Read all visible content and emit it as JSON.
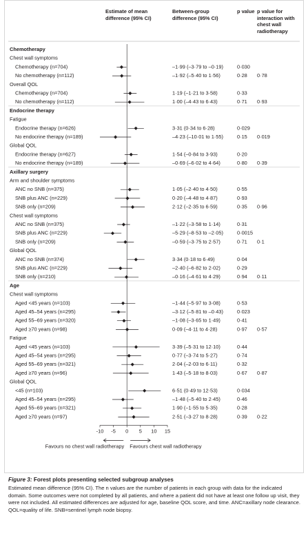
{
  "chart_data": {
    "type": "forest",
    "columns": [
      "Estimate of mean difference (95% CI)",
      "Between-group difference (95% CI)",
      "p value",
      "p value for interaction with chest wall radiotherapy"
    ],
    "xlim": [
      -10,
      15
    ],
    "xticks": [
      -10,
      -5,
      0,
      5,
      10,
      15
    ],
    "color": "#231f20",
    "favours_left": "Favours no chest wall radiotherapy",
    "favours_right": "Favours chest wall radiotherapy",
    "sections": [
      {
        "title": "Chemotherapy",
        "groups": [
          {
            "title": "Chest wall symptoms",
            "rows": [
              {
                "label": "Chemotherapy (n=704)",
                "estimate": -1.99,
                "ci_low": -3.79,
                "ci_high": -0.19,
                "difference": "–1·99 (–3·79 to –0·19)",
                "p": "0·030"
              },
              {
                "label": "No chemotherapy (n=112)",
                "estimate": -1.92,
                "ci_low": -5.4,
                "ci_high": 1.56,
                "difference": "–1·92 (–5·40 to 1·56)",
                "p": "0·28",
                "p_interaction": "0·78"
              }
            ]
          },
          {
            "title": "Overall QOL",
            "rows": [
              {
                "label": "Chemotherapy (n=704)",
                "estimate": 1.19,
                "ci_low": -1.21,
                "ci_high": 3.58,
                "difference": "1·19 (–1·21 to 3·58)",
                "p": "0·33"
              },
              {
                "label": "No chemotherapy (n=112)",
                "estimate": 1.0,
                "ci_low": -4.43,
                "ci_high": 6.43,
                "difference": "1·00 (–4·43 to 6·43)",
                "p": "0·71",
                "p_interaction": "0·93"
              }
            ]
          }
        ]
      },
      {
        "title": "Endocrine therapy",
        "groups": [
          {
            "title": "Fatigue",
            "rows": [
              {
                "label": "Endocrine therapy (n=626)",
                "estimate": 3.31,
                "ci_low": 0.34,
                "ci_high": 6.28,
                "difference": "3·31 (0·34 to 6·28)",
                "p": "0·029"
              },
              {
                "label": "No endocrine therapy (n=189)",
                "estimate": -4.23,
                "ci_low": -10.01,
                "ci_high": 1.55,
                "difference": "–4·23 (–10·01 to 1·55)",
                "p": "0·15",
                "p_interaction": "0·019"
              }
            ]
          },
          {
            "title": "Global QOL",
            "rows": [
              {
                "label": "Endocrine therapy (n=627)",
                "estimate": 1.54,
                "ci_low": -0.84,
                "ci_high": 3.93,
                "difference": "1·54 (–0·84 to 3·93)",
                "p": "0·20"
              },
              {
                "label": "No endocrine therapy (n=189)",
                "estimate": -0.69,
                "ci_low": -6.02,
                "ci_high": 4.64,
                "difference": "–0·69 (–6·02 to 4·64)",
                "p": "0·80",
                "p_interaction": "0·39"
              }
            ]
          }
        ]
      },
      {
        "title": "Axillary surgery",
        "groups": [
          {
            "title": "Arm and shoulder symptoms",
            "rows": [
              {
                "label": "ANC no SNB (n=375)",
                "estimate": 1.05,
                "ci_low": -2.4,
                "ci_high": 4.5,
                "difference": "1·05 (–2·40 to 4·50)",
                "p": "0·55"
              },
              {
                "label": "SNB plus ANC (n=229)",
                "estimate": 0.2,
                "ci_low": -4.48,
                "ci_high": 4.87,
                "difference": "0·20 (–4·48 to 4·87)",
                "p": "0·93"
              },
              {
                "label": "SNB only (n=209)",
                "estimate": 2.12,
                "ci_low": -2.35,
                "ci_high": 6.59,
                "difference": "2·12 (–2·35 to 6·59)",
                "p": "0·35",
                "p_interaction": "0·96"
              }
            ]
          },
          {
            "title": "Chest wall symptoms",
            "rows": [
              {
                "label": "ANC no SNB (n=375)",
                "estimate": -1.22,
                "ci_low": -3.58,
                "ci_high": 1.14,
                "difference": "–1·22 (–3·58 to 1·14)",
                "p": "0·31"
              },
              {
                "label": "SNB plus ANC (n=229)",
                "estimate": -5.29,
                "ci_low": -8.53,
                "ci_high": -2.05,
                "difference": "–5·29 (–8·53 to –2·05)",
                "p": "0·0015"
              },
              {
                "label": "SNB only (n=209)",
                "estimate": -0.59,
                "ci_low": -3.75,
                "ci_high": 2.57,
                "difference": "–0·59 (–3·75 to 2·57)",
                "p": "0·71",
                "p_interaction": "0·1"
              }
            ]
          },
          {
            "title": "Global QOL",
            "rows": [
              {
                "label": "ANC no SNB (n=374)",
                "estimate": 3.34,
                "ci_low": 0.18,
                "ci_high": 6.49,
                "difference": "3·34 (0·18 to 6·49)",
                "p": "0·04"
              },
              {
                "label": "SNB plus ANC (n=229)",
                "estimate": -2.4,
                "ci_low": -6.82,
                "ci_high": 2.02,
                "difference": "–2·40 (–6·82 to 2·02)",
                "p": "0·29"
              },
              {
                "label": "SNB only (n=210)",
                "estimate": -0.16,
                "ci_low": -4.61,
                "ci_high": 4.29,
                "difference": "–0·16 (–4·61 to 4·29)",
                "p": "0·94",
                "p_interaction": "0·11"
              }
            ]
          }
        ]
      },
      {
        "title": "Age",
        "groups": [
          {
            "title": "Chest wall symptoms",
            "rows": [
              {
                "label": "Aged <45 years (n=103)",
                "estimate": -1.44,
                "ci_low": -5.97,
                "ci_high": 3.08,
                "difference": "–1·44 (–5·97 to 3·08)",
                "p": "0·53"
              },
              {
                "label": "Aged 45–54 years (n=295)",
                "estimate": -3.12,
                "ci_low": -5.81,
                "ci_high": -0.43,
                "difference": "–3·12 (–5·81 to –0·43)",
                "p": "0·023"
              },
              {
                "label": "Aged 55–69 years (n=320)",
                "estimate": -1.08,
                "ci_low": -3.65,
                "ci_high": 1.49,
                "difference": "–1·08 (–3·65 to 1·49)",
                "p": "0·41"
              },
              {
                "label": "Aged ≥70 years (n=98)",
                "estimate": 0.09,
                "ci_low": -4.11,
                "ci_high": 4.28,
                "difference": "0·09 (–4·11 to 4·28)",
                "p": "0·97",
                "p_interaction": "0·57"
              }
            ]
          },
          {
            "title": "Fatigue",
            "rows": [
              {
                "label": "Aged <45 years (n=103)",
                "estimate": 3.39,
                "ci_low": -5.31,
                "ci_high": 12.1,
                "difference": "3·39 (–5·31 to 12·10)",
                "p": "0·44"
              },
              {
                "label": "Aged 45–54 years (n=295)",
                "estimate": 0.77,
                "ci_low": -3.74,
                "ci_high": 5.27,
                "difference": "0·77 (–3·74 to 5·27)",
                "p": "0·74"
              },
              {
                "label": "Aged 55–69 years (n=321)",
                "estimate": 2.04,
                "ci_low": -2.03,
                "ci_high": 6.11,
                "difference": "2·04 (–2·03 to 6·11)",
                "p": "0·32"
              },
              {
                "label": "Aged ≥70 years (n=96)",
                "estimate": 1.43,
                "ci_low": -5.18,
                "ci_high": 8.03,
                "difference": "1·43 (–5·18 to 8·03)",
                "p": "0·67",
                "p_interaction": "0·87"
              }
            ]
          },
          {
            "title": "Global QOL",
            "rows": [
              {
                "label": "<45 (n=103)",
                "estimate": 6.51,
                "ci_low": 0.49,
                "ci_high": 12.53,
                "difference": "6·51 (0·49 to 12·53)",
                "p": "0·034"
              },
              {
                "label": "Aged 45–54 years (n=295)",
                "estimate": -1.48,
                "ci_low": -5.4,
                "ci_high": 2.45,
                "difference": "–1·48 (–5·40 to 2·45)",
                "p": "0·46"
              },
              {
                "label": "Aged 55–69 years (n=321)",
                "estimate": 1.9,
                "ci_low": -1.55,
                "ci_high": 5.35,
                "difference": "1·90 (–1·55 to 5·35)",
                "p": "0·28"
              },
              {
                "label": "Aged ≥70 years (n=97)",
                "estimate": 2.51,
                "ci_low": -3.27,
                "ci_high": 8.28,
                "difference": "2·51 (–3·27 to 8·28)",
                "p": "0·39",
                "p_interaction": "0·22"
              }
            ]
          }
        ]
      }
    ]
  },
  "caption": {
    "label": "Figure 3:",
    "title": "Forest plots presenting selected subgroup analyses",
    "text": "Estimated mean difference (95% CI). The n values are the number of patients in each group with data for the indicated domain. Some outcomes were not completed by all patients, and where a patient did not have at least one follow up visit, they were not included. All estimated differences are adjusted for age, baseline QOL score, and time. ANC=axillary node clearance. QOL=quality of life. SNB=sentinel lymph node biopsy."
  }
}
